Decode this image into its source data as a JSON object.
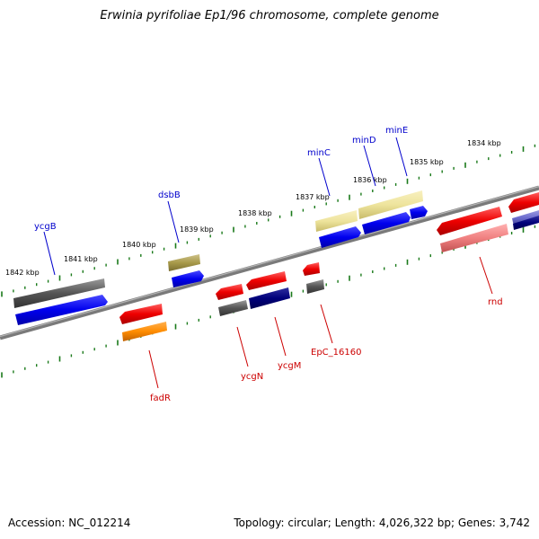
{
  "title": "Erwinia pyrifoliae Ep1/96 chromosome, complete genome",
  "footer": {
    "accession": "Accession: NC_012214",
    "topology": "Topology: circular; Length: 4,026,322 bp; Genes: 3,742"
  },
  "kbp_labels": [
    "1842 kbp",
    "1841 kbp",
    "1840 kbp",
    "1839 kbp",
    "1838 kbp",
    "1837 kbp",
    "1836 kbp",
    "1835 kbp",
    "1834 kbp"
  ],
  "gene_labels": {
    "forward": [
      "ycgB",
      "dsbB",
      "minC",
      "minD",
      "minE"
    ],
    "reverse": [
      "fadR",
      "ycgN",
      "ycgM",
      "EpC_16160",
      "rnd"
    ]
  },
  "colors": {
    "forward_label": "#0000cc",
    "reverse_label": "#cc0000",
    "backbone": "#808080",
    "ticks": "#1a7a1a",
    "gene_gray": "#666666",
    "gene_blue": "#0000ff",
    "gene_red": "#ff0000",
    "gene_olive": "#a89a4a",
    "gene_khaki": "#eee49c",
    "gene_navy": "#00007a",
    "gene_orange": "#ff8c00",
    "gene_pink": "#f08080",
    "gene_periwinkle": "#6a6acd"
  }
}
